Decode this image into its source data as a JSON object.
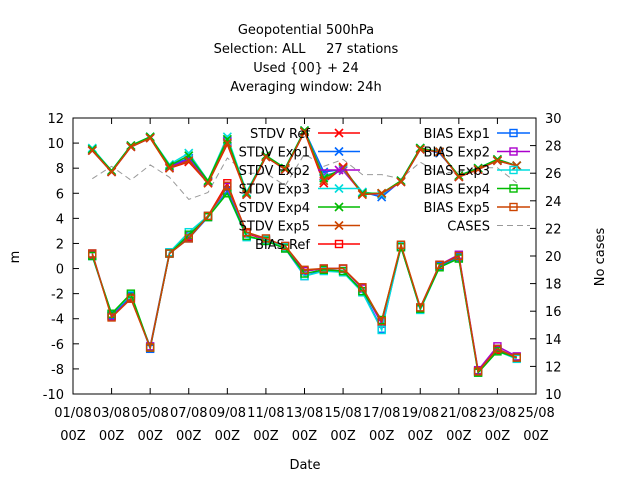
{
  "chart_data": {
    "type": "line",
    "title_lines": [
      "Geopotential 500hPa",
      "Selection: ALL     27 stations",
      "Used {00} + 24",
      "Averaging window: 24h"
    ],
    "xlabel": "Date",
    "ylabel": "m",
    "y2label": "No cases",
    "xlim": [
      0,
      24
    ],
    "ylim": [
      -10,
      12
    ],
    "y2lim": [
      10,
      30
    ],
    "y_ticks": [
      -10,
      -8,
      -6,
      -4,
      -2,
      0,
      2,
      4,
      6,
      8,
      10,
      12
    ],
    "y2_ticks": [
      10,
      12,
      14,
      16,
      18,
      20,
      22,
      24,
      26,
      28,
      30
    ],
    "x_ticks": [
      {
        "x": 0,
        "top": "01/08",
        "bottom": "00Z"
      },
      {
        "x": 2,
        "top": "03/08",
        "bottom": "00Z"
      },
      {
        "x": 4,
        "top": "05/08",
        "bottom": "00Z"
      },
      {
        "x": 6,
        "top": "07/08",
        "bottom": "00Z"
      },
      {
        "x": 8,
        "top": "09/08",
        "bottom": "00Z"
      },
      {
        "x": 10,
        "top": "11/08",
        "bottom": "00Z"
      },
      {
        "x": 12,
        "top": "13/08",
        "bottom": "00Z"
      },
      {
        "x": 14,
        "top": "15/08",
        "bottom": "00Z"
      },
      {
        "x": 16,
        "top": "17/08",
        "bottom": "00Z"
      },
      {
        "x": 18,
        "top": "19/08",
        "bottom": "00Z"
      },
      {
        "x": 20,
        "top": "21/08",
        "bottom": "00Z"
      },
      {
        "x": 22,
        "top": "23/08",
        "bottom": "00Z"
      },
      {
        "x": 24,
        "top": "25/08",
        "bottom": "00Z"
      }
    ],
    "x": [
      1,
      2,
      3,
      4,
      5,
      6,
      7,
      8,
      9,
      10,
      11,
      12,
      13,
      14,
      15,
      16,
      17,
      18,
      19,
      20,
      21,
      22,
      23
    ],
    "series": [
      {
        "name": "STDV Ref",
        "axis": "y1",
        "color": "#ff0000",
        "marker": "x",
        "dash": "",
        "values": [
          9.4,
          7.7,
          9.7,
          10.4,
          8.0,
          8.5,
          6.8,
          9.9,
          5.9,
          8.9,
          7.9,
          10.9,
          6.8,
          8.1,
          5.9,
          6.0,
          6.9,
          9.5,
          9.3,
          7.3,
          7.9,
          8.6,
          8.2
        ]
      },
      {
        "name": "STDV Exp1",
        "axis": "y1",
        "color": "#0066ff",
        "marker": "x",
        "dash": "",
        "values": [
          9.5,
          7.8,
          9.8,
          10.5,
          8.2,
          8.8,
          6.9,
          10.2,
          6.0,
          9.0,
          8.0,
          11.0,
          7.7,
          7.9,
          6.1,
          5.7,
          7.0,
          9.6,
          9.2,
          7.4,
          8.0,
          8.7,
          8.2
        ]
      },
      {
        "name": "STDV Exp2",
        "axis": "y1",
        "color": "#aa00cc",
        "marker": "x",
        "dash": "",
        "values": [
          9.4,
          7.7,
          9.7,
          10.4,
          8.1,
          8.7,
          6.9,
          10.1,
          5.9,
          8.9,
          7.9,
          10.9,
          7.4,
          7.8,
          6.0,
          5.9,
          6.9,
          9.5,
          9.3,
          7.3,
          7.9,
          8.6,
          8.2
        ]
      },
      {
        "name": "STDV Exp3",
        "axis": "y1",
        "color": "#00dddd",
        "marker": "x",
        "dash": "",
        "values": [
          9.6,
          7.8,
          9.8,
          10.5,
          8.3,
          9.2,
          7.0,
          10.5,
          6.1,
          9.0,
          8.0,
          11.0,
          7.3,
          7.9,
          6.1,
          5.9,
          7.0,
          9.6,
          9.3,
          7.4,
          8.0,
          8.7,
          8.2
        ]
      },
      {
        "name": "STDV Exp4",
        "axis": "y1",
        "color": "#00bb00",
        "marker": "x",
        "dash": "",
        "values": [
          9.5,
          7.8,
          9.8,
          10.5,
          8.2,
          9.0,
          7.0,
          10.3,
          6.0,
          9.0,
          8.0,
          11.0,
          7.2,
          8.0,
          6.0,
          6.0,
          7.0,
          9.6,
          9.3,
          7.4,
          8.0,
          8.7,
          8.2
        ]
      },
      {
        "name": "STDV Exp5",
        "axis": "y1",
        "color": "#cc4400",
        "marker": "x",
        "dash": "",
        "values": [
          9.4,
          7.7,
          9.7,
          10.4,
          8.0,
          8.6,
          6.8,
          10.0,
          5.9,
          8.9,
          7.9,
          10.9,
          7.0,
          8.0,
          5.9,
          6.0,
          6.9,
          9.5,
          9.3,
          7.3,
          7.9,
          8.6,
          8.2
        ]
      },
      {
        "name": "BIAS Ref",
        "axis": "y1",
        "color": "#ff0000",
        "marker": "square",
        "dash": "",
        "values": [
          1.1,
          -3.8,
          -2.3,
          -6.3,
          1.2,
          2.5,
          4.2,
          6.8,
          2.8,
          2.3,
          1.7,
          -0.2,
          0.0,
          0.0,
          -1.5,
          -4.3,
          1.8,
          -3.2,
          0.3,
          1.0,
          -8.2,
          -6.5,
          -7.1
        ]
      },
      {
        "name": "BIAS Exp1",
        "axis": "y1",
        "color": "#0066ff",
        "marker": "square",
        "dash": "",
        "values": [
          1.0,
          -3.7,
          -2.2,
          -6.4,
          1.2,
          2.4,
          4.1,
          6.2,
          2.6,
          2.2,
          1.6,
          -0.6,
          -0.1,
          -0.2,
          -1.8,
          -4.8,
          1.7,
          -3.2,
          0.2,
          0.9,
          -8.2,
          -6.4,
          -7.1
        ]
      },
      {
        "name": "BIAS Exp2",
        "axis": "y1",
        "color": "#aa00cc",
        "marker": "square",
        "dash": "",
        "values": [
          1.2,
          -3.8,
          -2.4,
          -6.2,
          1.3,
          2.6,
          4.2,
          6.5,
          2.9,
          2.3,
          1.8,
          -0.2,
          0.0,
          0.0,
          -1.6,
          -4.4,
          1.8,
          -3.1,
          0.3,
          1.1,
          -8.1,
          -6.2,
          -7.0
        ]
      },
      {
        "name": "BIAS Exp3",
        "axis": "y1",
        "color": "#00dddd",
        "marker": "square",
        "dash": "",
        "values": [
          1.0,
          -3.6,
          -2.1,
          -6.3,
          1.3,
          2.9,
          4.2,
          6.0,
          2.5,
          2.3,
          1.7,
          -0.6,
          -0.2,
          -0.3,
          -1.9,
          -4.9,
          1.8,
          -3.3,
          0.1,
          0.8,
          -8.3,
          -6.6,
          -7.2
        ]
      },
      {
        "name": "BIAS Exp4",
        "axis": "y1",
        "color": "#00bb00",
        "marker": "square",
        "dash": "",
        "values": [
          1.0,
          -3.6,
          -2.0,
          -6.3,
          1.2,
          2.7,
          4.1,
          6.0,
          2.6,
          2.2,
          1.6,
          -0.4,
          -0.1,
          -0.2,
          -1.8,
          -4.1,
          1.7,
          -3.2,
          0.1,
          0.8,
          -8.3,
          -6.6,
          -7.1
        ]
      },
      {
        "name": "BIAS Exp5",
        "axis": "y1",
        "color": "#cc4400",
        "marker": "square",
        "dash": "",
        "values": [
          1.2,
          -3.9,
          -2.4,
          -6.3,
          1.2,
          2.4,
          4.2,
          6.6,
          2.9,
          2.4,
          1.8,
          -0.1,
          0.0,
          0.0,
          -1.5,
          -4.2,
          1.9,
          -3.1,
          0.3,
          1.0,
          -8.2,
          -6.4,
          -7.1
        ]
      },
      {
        "name": "CASES",
        "axis": "y2",
        "color": "#999999",
        "marker": "none",
        "dash": "6,4",
        "values": [
          25.6,
          26.5,
          25.5,
          26.6,
          25.7,
          24.1,
          24.6,
          27.1,
          26.0,
          26.0,
          25.1,
          27.4,
          26.5,
          27.0,
          25.9,
          25.9,
          25.6,
          26.8,
          26.0,
          26.1,
          26.4,
          26.4,
          25.3
        ]
      }
    ]
  }
}
